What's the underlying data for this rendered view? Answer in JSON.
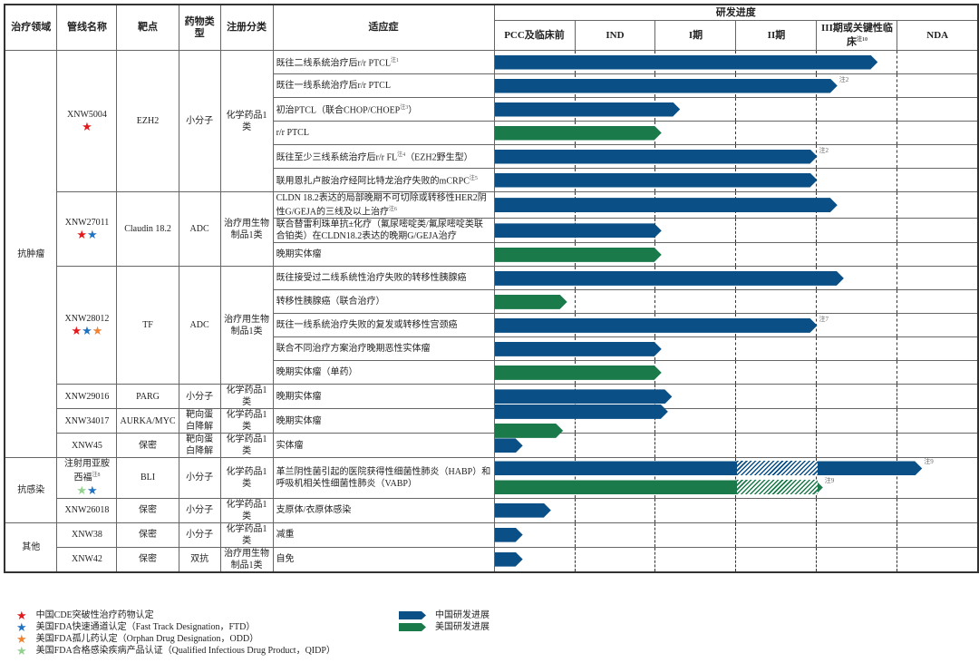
{
  "colors": {
    "china": "#0a4f86",
    "us": "#1b7a4a",
    "star_cde": "#e3191c",
    "star_ftd": "#1f72c4",
    "star_odd": "#f08232",
    "star_qidp": "#93d18e"
  },
  "header": {
    "area": "治疗领域",
    "pipeline": "管线名称",
    "target": "靶点",
    "drug_type": "药物类型",
    "registration": "注册分类",
    "indication": "适应症",
    "progress": "研发进度",
    "stages": [
      {
        "label": "PCC及临床前",
        "sup": ""
      },
      {
        "label": "IND",
        "sup": ""
      },
      {
        "label": "I期",
        "sup": ""
      },
      {
        "label": "II期",
        "sup": ""
      },
      {
        "label": "III期或关键性临床",
        "sup": "注10"
      },
      {
        "label": "NDA",
        "sup": ""
      }
    ]
  },
  "areas": [
    {
      "name": "抗肿瘤",
      "pipelines": [
        {
          "name": "XNW5004",
          "name_sup": "",
          "stars": [
            "cde"
          ],
          "target": "EZH2",
          "type": "小分子",
          "reg": "化学药品1类",
          "indications": [
            {
              "pre": "既往二线系统治疗后r/r PTCL",
              "sup": "注1",
              "post": "",
              "bars": [
                {
                  "region": "china",
                  "value": 4.75
                }
              ]
            },
            {
              "pre": "既往一线系统治疗后r/r PTCL",
              "sup": "",
              "post": "",
              "bars": [
                {
                  "region": "china",
                  "value": 4.25,
                  "note": "注2"
                }
              ]
            },
            {
              "pre": "初治PTCL（联合CHOP/CHOEP",
              "sup": "注3",
              "post": "）",
              "bars": [
                {
                  "region": "china",
                  "value": 2.3
                }
              ]
            },
            {
              "pre": "r/r PTCL",
              "sup": "",
              "post": "",
              "bars": [
                {
                  "region": "us",
                  "value": 2.07
                }
              ]
            },
            {
              "pre": "既往至少三线系统治疗后r/r FL",
              "sup": "注4",
              "post": "（EZH2野生型）",
              "bars": [
                {
                  "region": "china",
                  "value": 4.0,
                  "note": "注2"
                }
              ]
            },
            {
              "pre": "联用恩扎卢胺治疗经阿比特龙治疗失败的mCRPC",
              "sup": "注5",
              "post": "",
              "bars": [
                {
                  "region": "china",
                  "value": 4.0
                }
              ]
            }
          ]
        },
        {
          "name": "XNW27011",
          "name_sup": "",
          "stars": [
            "cde",
            "ftd"
          ],
          "target": "Claudin 18.2",
          "type": "ADC",
          "reg": "治疗用生物制品1类",
          "indications": [
            {
              "pre": "CLDN 18.2表达的局部晚期不可切除或转移性HER2阴性G/GEJA的三线及以上治疗",
              "sup": "注6",
              "post": "",
              "bars": [
                {
                  "region": "china",
                  "value": 4.25
                }
              ]
            },
            {
              "pre": "联合替雷利珠单抗±化疗（氟尿嘧啶类/氟尿嘧啶类联合铂类）在CLDN18.2表达的晚期G/GEJA治疗",
              "sup": "",
              "post": "",
              "bars": [
                {
                  "region": "china",
                  "value": 2.07
                }
              ]
            },
            {
              "pre": "晚期实体瘤",
              "sup": "",
              "post": "",
              "bars": [
                {
                  "region": "us",
                  "value": 2.07
                }
              ]
            }
          ]
        },
        {
          "name": "XNW28012",
          "name_sup": "",
          "stars": [
            "cde",
            "ftd",
            "odd"
          ],
          "target": "TF",
          "type": "ADC",
          "reg": "治疗用生物制品1类",
          "indications": [
            {
              "pre": "既往接受过二线系统性治疗失败的转移性胰腺癌",
              "sup": "",
              "post": "",
              "bars": [
                {
                  "region": "china",
                  "value": 4.33
                }
              ]
            },
            {
              "pre": "转移性胰腺癌（联合治疗）",
              "sup": "",
              "post": "",
              "bars": [
                {
                  "region": "us",
                  "value": 0.9
                }
              ]
            },
            {
              "pre": "既往一线系统治疗失败的复发或转移性宫颈癌",
              "sup": "",
              "post": "",
              "bars": [
                {
                  "region": "china",
                  "value": 4.0,
                  "note": "注7"
                }
              ]
            },
            {
              "pre": "联合不同治疗方案治疗晚期恶性实体瘤",
              "sup": "",
              "post": "",
              "bars": [
                {
                  "region": "china",
                  "value": 2.07
                }
              ]
            },
            {
              "pre": "晚期实体瘤（单药）",
              "sup": "",
              "post": "",
              "bars": [
                {
                  "region": "us",
                  "value": 2.07
                }
              ]
            }
          ]
        },
        {
          "name": "XNW29016",
          "name_sup": "",
          "stars": [],
          "target": "PARG",
          "type": "小分子",
          "reg": "化学药品1类",
          "indications": [
            {
              "pre": "晚期实体瘤",
              "sup": "",
              "post": "",
              "bars": [
                {
                  "region": "china",
                  "value": 2.2
                }
              ]
            }
          ]
        },
        {
          "name": "XNW34017",
          "name_sup": "",
          "stars": [],
          "target": "AURKA/MYC",
          "type": "靶向蛋白降解",
          "reg": "化学药品1类",
          "indications": [
            {
              "pre": "晚期实体瘤",
              "sup": "",
              "post": "",
              "bars": [
                {
                  "region": "china",
                  "value": 2.15
                },
                {
                  "region": "us",
                  "value": 0.85
                }
              ]
            }
          ]
        },
        {
          "name": "XNW45",
          "name_sup": "",
          "stars": [],
          "target": "保密",
          "type": "靶向蛋白降解",
          "reg": "化学药品1类",
          "indications": [
            {
              "pre": "实体瘤",
              "sup": "",
              "post": "",
              "bars": [
                {
                  "region": "china",
                  "value": 0.35
                }
              ]
            }
          ]
        }
      ]
    },
    {
      "name": "抗感染",
      "pipelines": [
        {
          "name": "注射用亚胺西福",
          "name_sup": "注8",
          "stars": [
            "qidp",
            "ftd"
          ],
          "target": "BLI",
          "type": "小分子",
          "reg": "化学药品1类",
          "indications": [
            {
              "pre": "革兰阴性菌引起的医院获得性细菌性肺炎（HABP）和呼吸机相关性细菌性肺炎（VABP）",
              "sup": "",
              "post": "",
              "bars": [
                {
                  "region": "china",
                  "value": 5.3,
                  "hatch_from": 3.0,
                  "hatch_to": 4.0,
                  "note": "注9"
                },
                {
                  "region": "us",
                  "value": 4.07,
                  "hatch_from": 3.0,
                  "hatch_to": 4.0,
                  "note": "注9"
                }
              ]
            }
          ]
        },
        {
          "name": "XNW26018",
          "name_sup": "",
          "stars": [],
          "target": "保密",
          "type": "小分子",
          "reg": "化学药品1类",
          "indications": [
            {
              "pre": "支原体/衣原体感染",
              "sup": "",
              "post": "",
              "bars": [
                {
                  "region": "china",
                  "value": 0.7
                }
              ]
            }
          ]
        }
      ]
    },
    {
      "name": "其他",
      "pipelines": [
        {
          "name": "XNW38",
          "name_sup": "",
          "stars": [],
          "target": "保密",
          "type": "小分子",
          "reg": "化学药品1类",
          "indications": [
            {
              "pre": "减重",
              "sup": "",
              "post": "",
              "bars": [
                {
                  "region": "china",
                  "value": 0.35
                }
              ]
            }
          ]
        },
        {
          "name": "XNW42",
          "name_sup": "",
          "stars": [],
          "target": "保密",
          "type": "双抗",
          "reg": "治疗用生物制品1类",
          "indications": [
            {
              "pre": "自免",
              "sup": "",
              "post": "",
              "bars": [
                {
                  "region": "china",
                  "value": 0.35
                }
              ]
            }
          ]
        }
      ]
    }
  ],
  "legend": {
    "stars": [
      {
        "key": "cde",
        "label": "中国CDE突破性治疗药物认定"
      },
      {
        "key": "ftd",
        "label": "美国FDA快速通道认定（Fast Track Designation，FTD）"
      },
      {
        "key": "odd",
        "label": "美国FDA孤儿药认定（Orphan Drug Designation，ODD）"
      },
      {
        "key": "qidp",
        "label": "美国FDA合格感染疾病产品认证（Qualified Infectious Drug Product，QIDP）"
      }
    ],
    "bars": [
      {
        "region": "china",
        "label": "中国研发进展"
      },
      {
        "region": "us",
        "label": "美国研发进展"
      }
    ]
  }
}
